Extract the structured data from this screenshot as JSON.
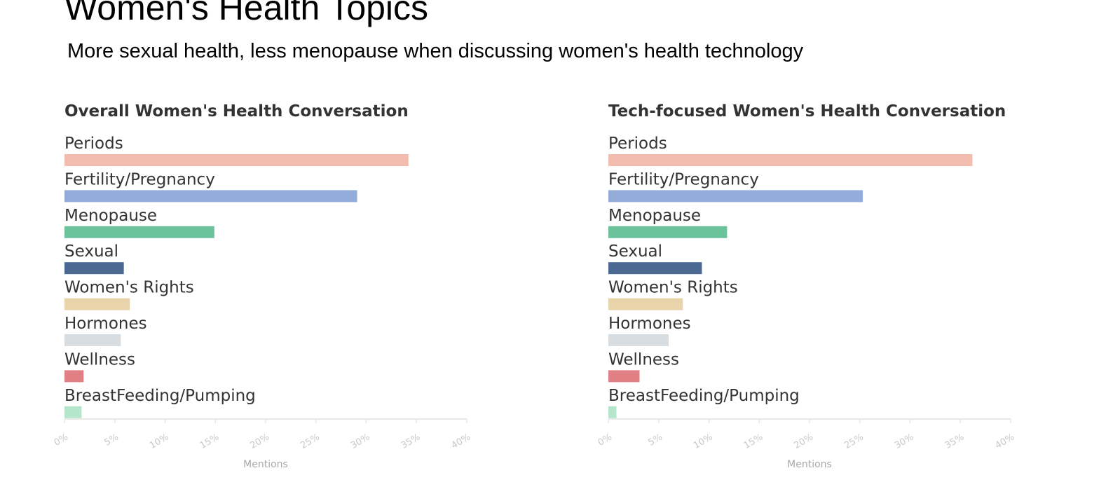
{
  "title": "Women's Health Topics",
  "subtitle": "More sexual health, less menopause when discussing women's health technology",
  "chart_data": [
    {
      "type": "bar",
      "orientation": "horizontal",
      "title": "Overall Women's Health Conversation",
      "categories": [
        "Periods",
        "Fertility/Pregnancy",
        "Menopause",
        "Sexual",
        "Women's Rights",
        "Hormones",
        "Wellness",
        "BreastFeeding/Pumping"
      ],
      "values": [
        34.2,
        29.1,
        14.9,
        5.9,
        6.5,
        5.6,
        1.9,
        1.7
      ],
      "colors": [
        "#f2bcae",
        "#94acd9",
        "#6cc29a",
        "#4a6892",
        "#e8d3ab",
        "#d8dde2",
        "#e07f84",
        "#b5e6cb"
      ],
      "xlim": [
        0,
        40
      ],
      "xticks": [
        {
          "value": 0,
          "label": "0%"
        },
        {
          "value": 5,
          "label": "5%"
        },
        {
          "value": 10,
          "label": "10%"
        },
        {
          "value": 15,
          "label": "15%"
        },
        {
          "value": 20,
          "label": "20%"
        },
        {
          "value": 25,
          "label": "25%"
        },
        {
          "value": 30,
          "label": "30%"
        },
        {
          "value": 35,
          "label": "35%"
        },
        {
          "value": 40,
          "label": "40%"
        }
      ],
      "xlabel": "Mentions"
    },
    {
      "type": "bar",
      "orientation": "horizontal",
      "title": "Tech-focused Women's Health Conversation",
      "categories": [
        "Periods",
        "Fertility/Pregnancy",
        "Menopause",
        "Sexual",
        "Women's Rights",
        "Hormones",
        "Wellness",
        "BreastFeeding/Pumping"
      ],
      "values": [
        36.2,
        25.3,
        11.8,
        9.3,
        7.4,
        6.0,
        3.1,
        0.8
      ],
      "colors": [
        "#f2bcae",
        "#94acd9",
        "#6cc29a",
        "#4a6892",
        "#e8d3ab",
        "#d8dde2",
        "#e07f84",
        "#b5e6cb"
      ],
      "xlim": [
        0,
        40
      ],
      "xticks": [
        {
          "value": 0,
          "label": "0%"
        },
        {
          "value": 5,
          "label": "5%"
        },
        {
          "value": 10,
          "label": "10%"
        },
        {
          "value": 15,
          "label": "15%"
        },
        {
          "value": 20,
          "label": "20%"
        },
        {
          "value": 25,
          "label": "25%"
        },
        {
          "value": 30,
          "label": "30%"
        },
        {
          "value": 35,
          "label": "35%"
        },
        {
          "value": 40,
          "label": "40%"
        }
      ],
      "xlabel": "Mentions"
    }
  ]
}
